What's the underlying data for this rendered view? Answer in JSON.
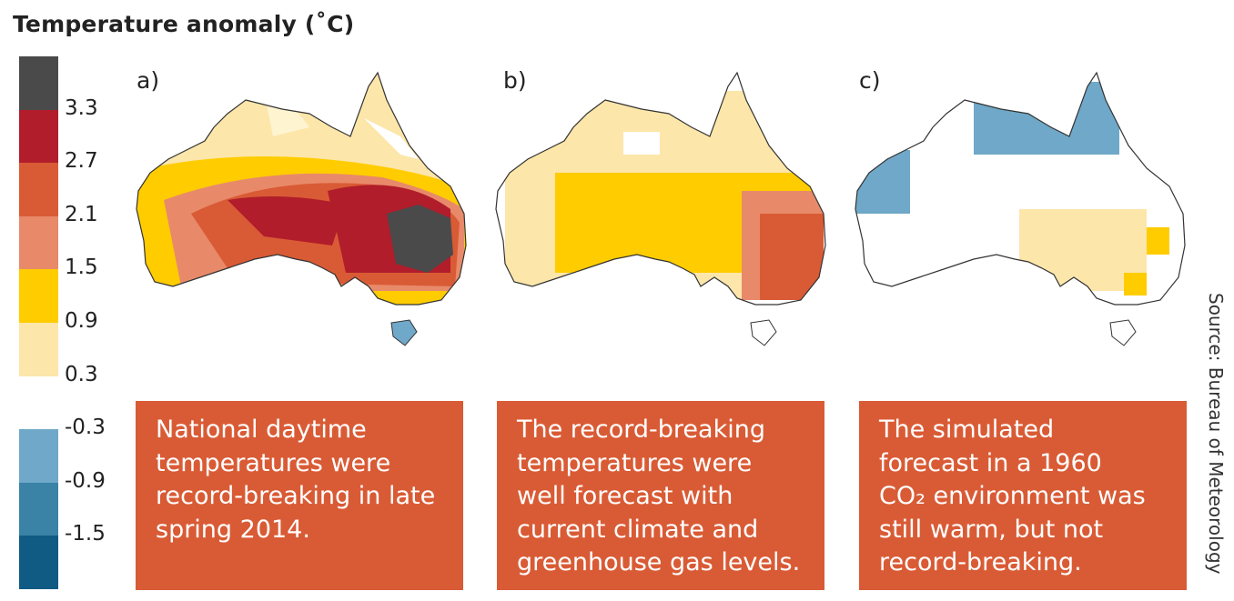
{
  "title": "Temperature anomaly (˚C)",
  "legend": {
    "colors": [
      "#4a4a4a",
      "#b11d2b",
      "#d95b35",
      "#e88a6a",
      "#ffcc00",
      "#fde6aa",
      "#ffffff",
      "#6fa8c8",
      "#3a82a6",
      "#0f5b83"
    ],
    "ticks": [
      "3.3",
      "2.7",
      "2.1",
      "1.5",
      "0.9",
      "0.3",
      "-0.3",
      "-0.9",
      "-1.5"
    ]
  },
  "panels": [
    {
      "label": "a)",
      "caption": [
        "National daytime",
        "temperatures were",
        "record-breaking in late",
        "spring 2014."
      ]
    },
    {
      "label": "b)",
      "caption": [
        "The record-breaking",
        "temperatures were",
        "well forecast with",
        "current climate and",
        "greenhouse gas levels."
      ]
    },
    {
      "label": "c)",
      "caption": [
        "The simulated",
        "forecast in a 1960",
        "CO₂ environment was",
        "still warm, but not",
        "record-breaking."
      ]
    }
  ],
  "source": "Source: Bureau of Meteorology",
  "colors": {
    "caption_bg": "#d95b35",
    "outline": "#333333"
  }
}
